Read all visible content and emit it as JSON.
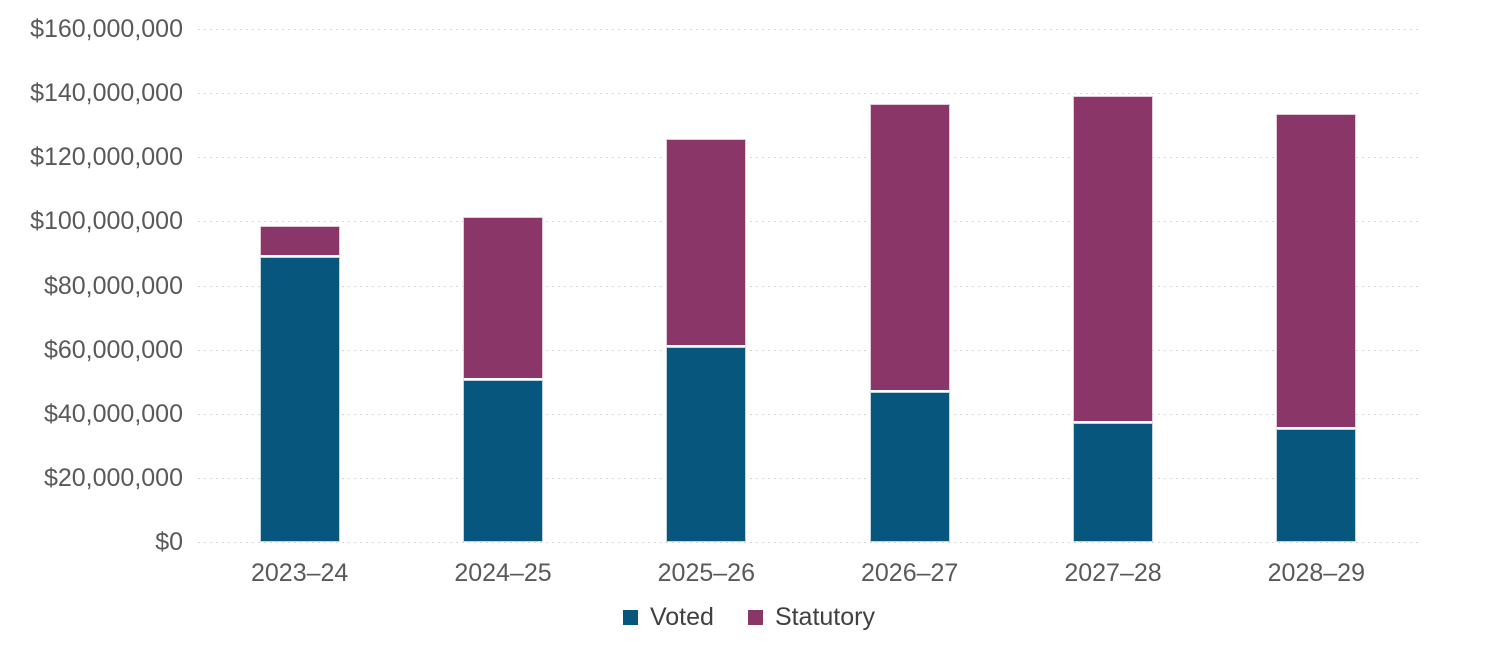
{
  "chart_data": {
    "type": "bar",
    "stacked": true,
    "title": "",
    "xlabel": "",
    "ylabel": "",
    "categories": [
      "2023–24",
      "2024–25",
      "2025–26",
      "2026–27",
      "2027–28",
      "2028–29"
    ],
    "series": [
      {
        "name": "Voted",
        "color": "#07567E",
        "values": [
          89000000,
          50600000,
          60800000,
          46900000,
          37000000,
          35200000
        ]
      },
      {
        "name": "Statutory",
        "color": "#8A3668",
        "values": [
          9500000,
          50900000,
          65000000,
          89800000,
          102000000,
          98200000
        ]
      }
    ],
    "ylim": [
      0,
      160000000
    ],
    "y_tick_step": 20000000,
    "y_tick_labels": [
      "$160,000,000",
      "$140,000,000",
      "$120,000,000",
      "$100,000,000",
      "$80,000,000",
      "$60,000,000",
      "$40,000,000",
      "$20,000,000",
      "$0"
    ],
    "grid": true,
    "gridline_style": "dotted",
    "gridline_color": "#d6d6d6",
    "legend_position": "bottom",
    "axis_label_color": "#595959",
    "legend_text_color": "#404040"
  }
}
